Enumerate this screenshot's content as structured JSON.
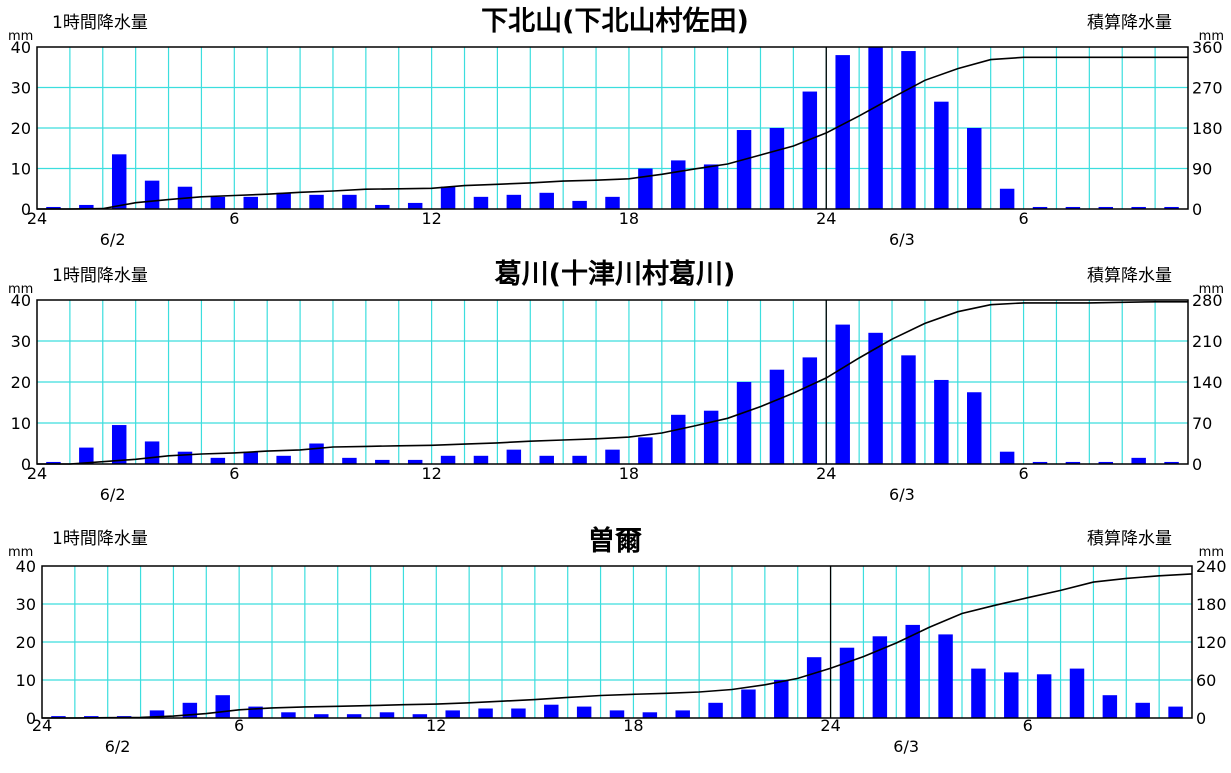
{
  "chart_data": [
    {
      "type": "bar",
      "title": "下北山(下北山村佐田)",
      "ylabel_left": "1時間降水量",
      "ylabel_right": "積算降水量",
      "unit_left": "mm",
      "unit_right": "mm",
      "ylim_left": [
        0,
        40
      ],
      "ylim_right": [
        0,
        360
      ],
      "yticks_left": [
        "0",
        "10",
        "20",
        "30",
        "40"
      ],
      "yticks_right": [
        "0",
        "90",
        "180",
        "270",
        "360"
      ],
      "x_tick_labels": [
        {
          "i": 0,
          "label": "24"
        },
        {
          "i": 6,
          "label": "6"
        },
        {
          "i": 12,
          "label": "12"
        },
        {
          "i": 18,
          "label": "18"
        },
        {
          "i": 24,
          "label": "24"
        },
        {
          "i": 30,
          "label": "6"
        }
      ],
      "date_labels": [
        {
          "i": 2,
          "label": "6/2"
        },
        {
          "i": 26,
          "label": "6/3"
        }
      ],
      "day_boundary_hour": 24,
      "grid": true,
      "series": [
        {
          "kind": "bar",
          "color": "#0000ff",
          "values": [
            0.5,
            1,
            13.5,
            7,
            5.5,
            3,
            3,
            4,
            3.5,
            3.5,
            1,
            1.5,
            5.5,
            3,
            3.5,
            4,
            2,
            3,
            10,
            12,
            11,
            19.5,
            20,
            29,
            38,
            40,
            39,
            26.5,
            20,
            5,
            0.5,
            0.5,
            0.5,
            0.5,
            0.5
          ]
        },
        {
          "kind": "line",
          "axis": "right",
          "color": "#000000",
          "values": [
            0,
            1,
            14,
            21,
            27,
            30,
            33,
            37,
            40,
            44,
            45,
            46,
            52,
            55,
            58,
            62,
            64,
            67,
            77,
            89,
            100,
            120,
            140,
            169,
            207,
            247,
            286,
            312,
            332,
            337,
            337,
            337,
            337,
            337,
            337
          ]
        }
      ]
    },
    {
      "type": "bar",
      "title": "葛川(十津川村葛川)",
      "ylabel_left": "1時間降水量",
      "ylabel_right": "積算降水量",
      "unit_left": "mm",
      "unit_right": "mm",
      "ylim_left": [
        0,
        40
      ],
      "ylim_right": [
        0,
        280
      ],
      "yticks_left": [
        "0",
        "10",
        "20",
        "30",
        "40"
      ],
      "yticks_right": [
        "0",
        "70",
        "140",
        "210",
        "280"
      ],
      "x_tick_labels": [
        {
          "i": 0,
          "label": "24"
        },
        {
          "i": 6,
          "label": "6"
        },
        {
          "i": 12,
          "label": "12"
        },
        {
          "i": 18,
          "label": "18"
        },
        {
          "i": 24,
          "label": "24"
        },
        {
          "i": 30,
          "label": "6"
        }
      ],
      "date_labels": [
        {
          "i": 2,
          "label": "6/2"
        },
        {
          "i": 26,
          "label": "6/3"
        }
      ],
      "day_boundary_hour": 24,
      "grid": true,
      "series": [
        {
          "kind": "bar",
          "color": "#0000ff",
          "values": [
            0.5,
            4,
            9.5,
            5.5,
            3,
            1.5,
            3,
            2,
            5,
            1.5,
            1,
            1,
            2,
            2,
            3.5,
            2,
            2,
            3.5,
            6.5,
            12,
            13,
            20,
            23,
            26,
            34,
            32,
            26.5,
            20.5,
            17.5,
            3,
            0.5,
            0.5,
            0.5,
            1.5,
            0.5
          ]
        },
        {
          "kind": "line",
          "axis": "right",
          "color": "#000000",
          "values": [
            0,
            4,
            8,
            14,
            17,
            19,
            22,
            24,
            29,
            30,
            31,
            32,
            34,
            36,
            39,
            41,
            43,
            46,
            53,
            65,
            78,
            98,
            121,
            147,
            181,
            213,
            240,
            260,
            272,
            275,
            275,
            275,
            276,
            277,
            277
          ]
        }
      ]
    },
    {
      "type": "bar",
      "title": "曽爾",
      "ylabel_left": "1時間降水量",
      "ylabel_right": "積算降水量",
      "unit_left": "mm",
      "unit_right": "mm",
      "ylim_left": [
        0,
        40
      ],
      "ylim_right": [
        0,
        240
      ],
      "yticks_left": [
        "0",
        "10",
        "20",
        "30",
        "40"
      ],
      "yticks_right": [
        "0",
        "60",
        "120",
        "180",
        "240"
      ],
      "x_tick_labels": [
        {
          "i": 0,
          "label": "24"
        },
        {
          "i": 6,
          "label": "6"
        },
        {
          "i": 12,
          "label": "12"
        },
        {
          "i": 18,
          "label": "18"
        },
        {
          "i": 24,
          "label": "24"
        },
        {
          "i": 30,
          "label": "6"
        }
      ],
      "date_labels": [
        {
          "i": 2,
          "label": "6/2"
        },
        {
          "i": 26,
          "label": "6/3"
        }
      ],
      "day_boundary_hour": 24,
      "grid": true,
      "series": [
        {
          "kind": "bar",
          "color": "#0000ff",
          "values": [
            0.5,
            0.5,
            0.5,
            2,
            4,
            6,
            3,
            1.5,
            1,
            1,
            1.5,
            1,
            2,
            2.5,
            2.5,
            3.5,
            3,
            2,
            1.5,
            2,
            4,
            7.5,
            10,
            16,
            18.5,
            21.5,
            24.5,
            22,
            13,
            12,
            11.5,
            13,
            6,
            4,
            3
          ]
        },
        {
          "kind": "line",
          "axis": "right",
          "color": "#000000",
          "values": [
            0,
            0.5,
            1,
            3,
            7,
            13,
            16,
            17.5,
            18.5,
            19.5,
            21,
            22,
            24,
            26.5,
            29,
            32.5,
            35.5,
            37.5,
            39,
            41,
            45,
            52.5,
            62.5,
            78.5,
            97,
            118.5,
            143,
            165,
            178,
            190,
            201.5,
            214.5,
            220.5,
            224.5,
            227.5
          ]
        }
      ]
    }
  ]
}
